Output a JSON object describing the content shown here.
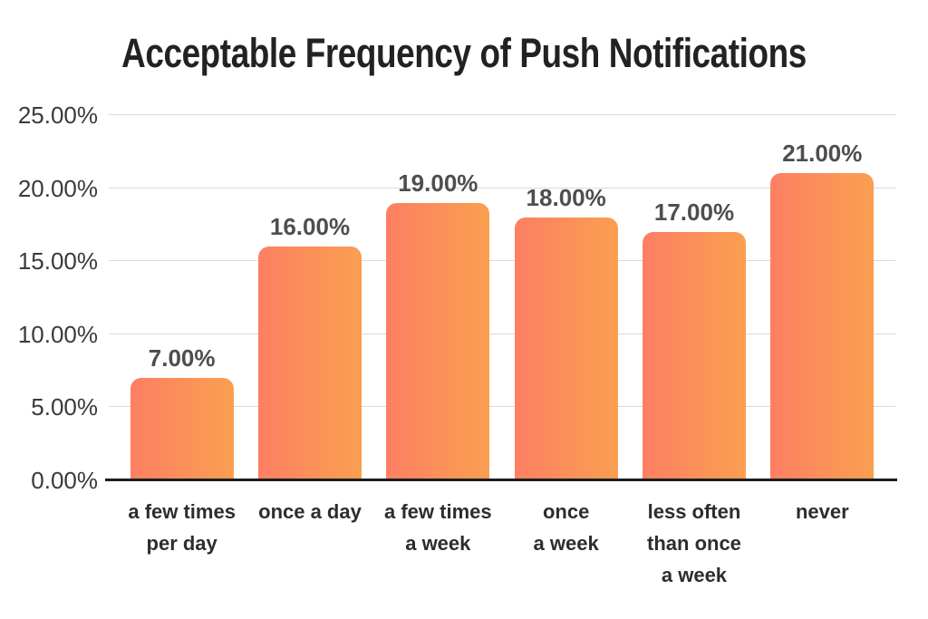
{
  "chart_data": {
    "type": "bar",
    "title": "Acceptable Frequency of Push Notifications",
    "categories": [
      "a few times\nper day",
      "once a day",
      "a few times\na week",
      "once\na week",
      "less often\nthan once\na week",
      "never"
    ],
    "values": [
      7,
      16,
      19,
      18,
      17,
      21
    ],
    "value_labels": [
      "7.00%",
      "16.00%",
      "19.00%",
      "18.00%",
      "17.00%",
      "21.00%"
    ],
    "xlabel": "",
    "ylabel": "",
    "ylim": [
      0,
      25
    ],
    "y_ticks": [
      {
        "value": 0,
        "label": "0.00%"
      },
      {
        "value": 5,
        "label": "5.00%"
      },
      {
        "value": 10,
        "label": "10.00%"
      },
      {
        "value": 15,
        "label": "15.00%"
      },
      {
        "value": 20,
        "label": "20.00%"
      },
      {
        "value": 25,
        "label": "25.00%"
      }
    ],
    "grid": true,
    "legend": false,
    "colors": {
      "background": "#FFFFFF",
      "title_text": "#222222",
      "bar_gradient_left": "#FD7F63",
      "bar_gradient_right": "#FB9F50",
      "gridline": "#DBDBDB",
      "axis_line": "#1D1D1D",
      "tick_text": "#3A3A3A",
      "value_text": "#4E4E4E",
      "category_text": "#2D2D2D"
    }
  }
}
